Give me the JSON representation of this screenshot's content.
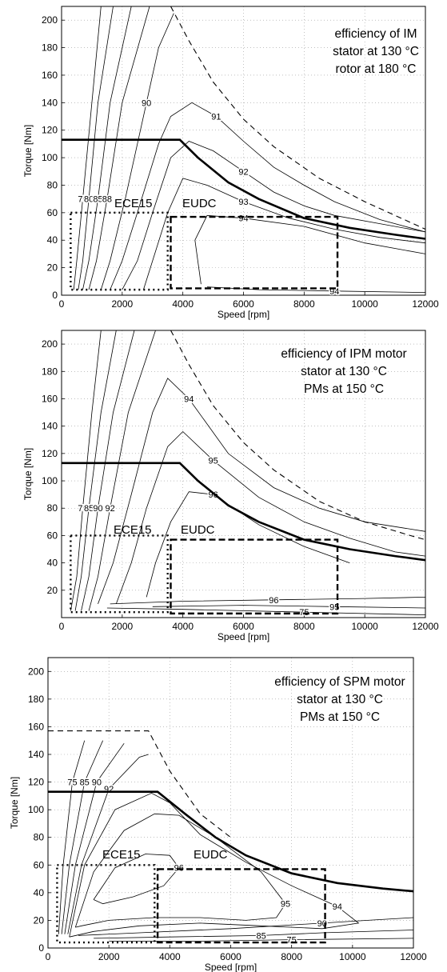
{
  "chart_data": [
    {
      "type": "contour",
      "xlabel": "Speed [rpm]",
      "ylabel": "Torque [Nm]",
      "xlim": [
        0,
        12000
      ],
      "ylim": [
        0,
        210
      ],
      "xticks": [
        0,
        2000,
        4000,
        6000,
        8000,
        10000,
        12000
      ],
      "xtick_labels": [
        "0",
        "2000",
        "4000",
        "6000",
        "8000",
        "10000",
        "12000"
      ],
      "yticks": [
        0,
        20,
        40,
        60,
        80,
        100,
        120,
        140,
        160,
        180,
        200
      ],
      "ytick_labels": [
        "0",
        "20",
        "40",
        "60",
        "80",
        "100",
        "120",
        "140",
        "160",
        "180",
        "200"
      ],
      "grid": true,
      "annotation": [
        "efficiency of IM",
        "stator at 130 °C",
        "rotor at 180 °C"
      ],
      "max_torque_curve": {
        "x": [
          0,
          3900,
          4500,
          5500,
          6500,
          8000,
          9500,
          11000,
          12000
        ],
        "y": [
          113,
          113,
          100,
          82,
          70,
          56,
          49,
          44,
          41
        ]
      },
      "limit_curve": {
        "x": [
          3600,
          4200,
          5000,
          6000,
          7000,
          8500,
          10000,
          11500,
          12000
        ],
        "y": [
          210,
          185,
          155,
          128,
          108,
          85,
          68,
          53,
          48
        ]
      },
      "ece15_box": {
        "x": [
          300,
          3500
        ],
        "y": [
          4,
          60
        ],
        "label": "ECE15"
      },
      "eudc_box": {
        "x": [
          3600,
          9100
        ],
        "y": [
          5,
          57
        ],
        "label": "EUDC"
      },
      "contours": [
        {
          "level": "75",
          "x": [
            400,
            500,
            700,
            1000,
            1300
          ],
          "y": [
            4,
            25,
            70,
            140,
            210
          ]
        },
        {
          "level": "80",
          "x": [
            550,
            700,
            900,
            1200,
            1700
          ],
          "y": [
            4,
            25,
            70,
            140,
            210
          ]
        },
        {
          "level": "85",
          "x": [
            700,
            900,
            1200,
            1600,
            2300
          ],
          "y": [
            4,
            25,
            70,
            140,
            210
          ]
        },
        {
          "level": "88",
          "x": [
            900,
            1150,
            1500,
            2000,
            2900
          ],
          "y": [
            4,
            25,
            70,
            140,
            210
          ]
        },
        {
          "level": "90",
          "x": [
            1300,
            1600,
            2100,
            2800,
            3200,
            3700
          ],
          "y": [
            4,
            25,
            70,
            140,
            180,
            205
          ]
        },
        {
          "level": "91",
          "x": [
            1600,
            2000,
            2500,
            3200,
            3600,
            4300,
            5100,
            6000,
            7000,
            8000,
            9000,
            10500,
            12000
          ],
          "y": [
            4,
            25,
            60,
            110,
            130,
            140,
            130,
            112,
            93,
            80,
            68,
            55,
            46
          ]
        },
        {
          "level": "92",
          "x": [
            2000,
            2500,
            3000,
            3600,
            4200,
            5000,
            6000,
            7000,
            8000,
            9000,
            10500,
            12000
          ],
          "y": [
            4,
            25,
            60,
            100,
            112,
            105,
            90,
            75,
            65,
            58,
            52,
            46
          ]
        },
        {
          "level": "93",
          "x": [
            2700,
            3000,
            3500,
            4000,
            4800,
            6000,
            7500,
            9000,
            10500,
            12000
          ],
          "y": [
            4,
            25,
            60,
            85,
            80,
            68,
            56,
            48,
            42,
            38
          ]
        },
        {
          "level": "94",
          "x": [
            4600,
            4400,
            4800,
            6000,
            8000,
            10000,
            12000
          ],
          "y": [
            8,
            40,
            58,
            56,
            50,
            38,
            30
          ]
        },
        {
          "level": "94",
          "x": [
            4800,
            6500,
            9000,
            12000
          ],
          "y": [
            6,
            4,
            3,
            2
          ]
        }
      ]
    },
    {
      "type": "contour",
      "xlabel": "Speed [rpm]",
      "ylabel": "Torque [Nm]",
      "xlim": [
        0,
        12000
      ],
      "ylim": [
        0,
        210
      ],
      "xticks": [
        0,
        2000,
        4000,
        6000,
        8000,
        10000,
        12000
      ],
      "xtick_labels": [
        "0",
        "2000",
        "4000",
        "6000",
        "8000",
        "10000",
        "12000"
      ],
      "yticks": [
        20,
        40,
        60,
        80,
        100,
        120,
        140,
        160,
        180,
        200
      ],
      "ytick_labels": [
        "20",
        "40",
        "60",
        "80",
        "100",
        "120",
        "140",
        "160",
        "180",
        "200"
      ],
      "grid": true,
      "annotation": [
        "efficiency of IPM motor",
        "stator at 130 °C",
        "PMs at 150 °C"
      ],
      "max_torque_curve": {
        "x": [
          0,
          3900,
          4500,
          5500,
          6500,
          8000,
          9500,
          11000,
          12000
        ],
        "y": [
          113,
          113,
          100,
          82,
          70,
          57,
          50,
          45,
          42
        ]
      },
      "limit_curve": {
        "x": [
          3600,
          4200,
          5000,
          6000,
          7000,
          8500,
          10000,
          11500,
          12000
        ],
        "y": [
          210,
          185,
          155,
          128,
          108,
          85,
          70,
          60,
          57
        ]
      },
      "ece15_box": {
        "x": [
          300,
          3500
        ],
        "y": [
          4,
          60
        ],
        "label": "ECE15"
      },
      "eudc_box": {
        "x": [
          3600,
          9100
        ],
        "y": [
          3,
          57
        ],
        "label": "EUDC"
      },
      "contours": [
        {
          "level": "75",
          "x": [
            300,
            500,
            700,
            1000,
            1300
          ],
          "y": [
            5,
            30,
            80,
            150,
            210
          ]
        },
        {
          "level": "85",
          "x": [
            450,
            650,
            900,
            1300,
            1800
          ],
          "y": [
            5,
            30,
            80,
            150,
            210
          ]
        },
        {
          "level": "90",
          "x": [
            650,
            900,
            1200,
            1700,
            2400
          ],
          "y": [
            5,
            30,
            80,
            150,
            210
          ]
        },
        {
          "level": "92",
          "x": [
            900,
            1200,
            1600,
            2200,
            3100
          ],
          "y": [
            5,
            30,
            80,
            150,
            210
          ]
        },
        {
          "level": "94",
          "x": [
            1200,
            1700,
            2300,
            3000,
            3500,
            4200,
            5500,
            7000,
            8500,
            10000,
            12000
          ],
          "y": [
            10,
            40,
            90,
            150,
            175,
            160,
            120,
            95,
            80,
            70,
            63
          ]
        },
        {
          "level": "95",
          "x": [
            1800,
            2300,
            2800,
            3500,
            4000,
            5000,
            6500,
            8000,
            9500,
            11000,
            12000
          ],
          "y": [
            10,
            40,
            80,
            125,
            136,
            115,
            88,
            70,
            58,
            48,
            45
          ]
        },
        {
          "level": "96",
          "x": [
            2800,
            3100,
            3600,
            4200,
            5000,
            6500,
            8000,
            9500
          ],
          "y": [
            15,
            40,
            70,
            92,
            90,
            68,
            52,
            40
          ]
        },
        {
          "level": "96",
          "x": [
            1600,
            4000,
            7000,
            10000,
            12000
          ],
          "y": [
            10,
            12,
            13,
            14,
            15
          ]
        },
        {
          "level": "95",
          "x": [
            3000,
            6000,
            9000,
            12000
          ],
          "y": [
            8,
            9,
            8,
            7
          ]
        },
        {
          "level": "75",
          "x": [
            1500,
            4000,
            8000,
            12000
          ],
          "y": [
            7,
            6,
            4,
            2
          ]
        }
      ]
    },
    {
      "type": "contour",
      "xlabel": "Speed [rpm]",
      "ylabel": "Torque [Nm]",
      "xlim": [
        0,
        12000
      ],
      "ylim": [
        0,
        210
      ],
      "xticks": [
        0,
        2000,
        4000,
        6000,
        8000,
        10000,
        12000
      ],
      "xtick_labels": [
        "0",
        "2000",
        "4000",
        "6000",
        "8000",
        "10000",
        "12000"
      ],
      "yticks": [
        0,
        20,
        40,
        60,
        80,
        100,
        120,
        140,
        160,
        180,
        200
      ],
      "ytick_labels": [
        "0",
        "20",
        "40",
        "60",
        "80",
        "100",
        "120",
        "140",
        "160",
        "180",
        "200"
      ],
      "grid": true,
      "annotation": [
        "efficiency of SPM motor",
        "stator at 130 °C",
        "PMs at 150 °C"
      ],
      "max_torque_curve": {
        "x": [
          0,
          3600,
          4500,
          5500,
          6500,
          8000,
          9500,
          11000,
          12000
        ],
        "y": [
          113,
          113,
          97,
          80,
          67,
          54,
          47,
          43,
          41
        ]
      },
      "limit_curve": {
        "x": [
          0,
          3300,
          4000,
          5000,
          6000
        ],
        "y": [
          157,
          157,
          128,
          97,
          80
        ]
      },
      "ece15_box": {
        "x": [
          300,
          3500
        ],
        "y": [
          4,
          60
        ],
        "label": "ECE15"
      },
      "eudc_box": {
        "x": [
          3600,
          9100
        ],
        "y": [
          4,
          57
        ],
        "label": "EUDC"
      },
      "contours": [
        {
          "level": "75",
          "x": [
            350,
            500,
            800,
            1200
          ],
          "y": [
            10,
            60,
            120,
            150
          ]
        },
        {
          "level": "85",
          "x": [
            450,
            700,
            1200,
            1800
          ],
          "y": [
            10,
            60,
            120,
            150
          ]
        },
        {
          "level": "90",
          "x": [
            550,
            900,
            1600,
            2500
          ],
          "y": [
            10,
            60,
            120,
            148
          ]
        },
        {
          "level": "92",
          "x": [
            650,
            1100,
            2000,
            3000,
            3300
          ],
          "y": [
            10,
            60,
            115,
            138,
            140
          ]
        },
        {
          "level": "94",
          "x": [
            700,
            1200,
            2200,
            3400,
            4000,
            5000,
            6500,
            8000,
            9500,
            10200,
            9000,
            7000,
            5000,
            3000,
            1500,
            700
          ],
          "y": [
            8,
            60,
            100,
            112,
            105,
            82,
            62,
            45,
            30,
            18,
            14,
            16,
            18,
            16,
            12,
            8
          ]
        },
        {
          "level": "95",
          "x": [
            900,
            1500,
            2500,
            3500,
            4300,
            5500,
            7000,
            7800,
            7500,
            6500,
            5000,
            3500,
            2000,
            1100,
            900
          ],
          "y": [
            15,
            55,
            85,
            97,
            96,
            80,
            55,
            32,
            22,
            20,
            22,
            22,
            20,
            16,
            15
          ]
        },
        {
          "level": "96",
          "x": [
            1500,
            2200,
            3200,
            4000,
            4300,
            3800,
            2800,
            1800,
            1500
          ],
          "y": [
            35,
            58,
            68,
            67,
            58,
            45,
            37,
            32,
            35
          ]
        },
        {
          "level": "90",
          "x": [
            1000,
            3000,
            6000,
            9000,
            10500,
            12000
          ],
          "y": [
            9,
            11,
            14,
            18,
            20,
            22
          ]
        },
        {
          "level": "85",
          "x": [
            1500,
            4000,
            7000,
            9000,
            12000
          ],
          "y": [
            7,
            8,
            9,
            11,
            13
          ]
        },
        {
          "level": "75",
          "x": [
            2000,
            5000,
            8000,
            12000
          ],
          "y": [
            5,
            5,
            6,
            7
          ]
        }
      ]
    }
  ]
}
